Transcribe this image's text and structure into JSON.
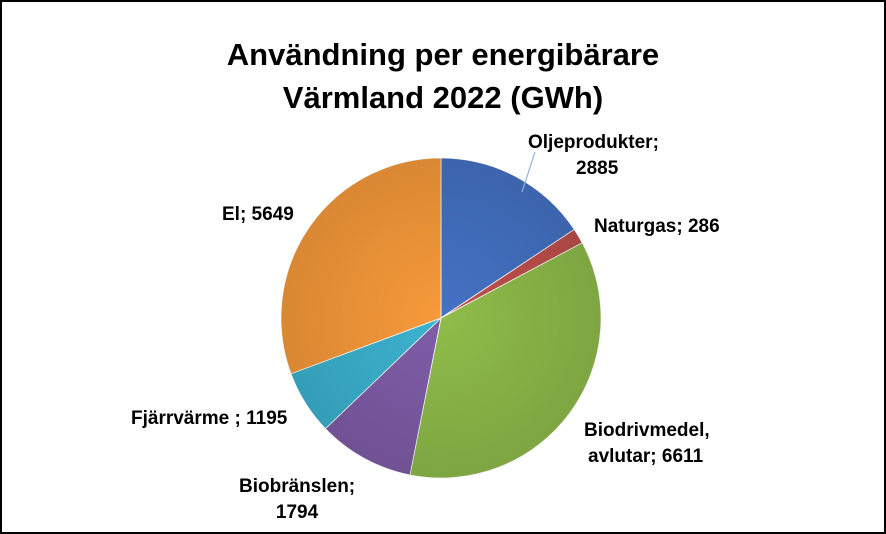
{
  "chart_data": {
    "type": "pie",
    "title_line1": "Användning per energibärare",
    "title_line2": "Värmland 2022 (GWh)",
    "slices": [
      {
        "label_line1": "Oljeprodukter;",
        "label_line2": "2885",
        "value": 2885,
        "color": "#4472C4"
      },
      {
        "label_line1": "Naturgas; 286",
        "label_line2": "",
        "value": 286,
        "color": "#C0504D"
      },
      {
        "label_line1": "Biodrivmedel,",
        "label_line2": "avlutar; 6611",
        "value": 6611,
        "color": "#8FBC4A"
      },
      {
        "label_line1": "Biobränslen;",
        "label_line2": "1794",
        "value": 1794,
        "color": "#7F5DA8"
      },
      {
        "label_line1": "Fjärrvärme ; 1195",
        "label_line2": "",
        "value": 1195,
        "color": "#3CB3D0"
      },
      {
        "label_line1": "El; 5649",
        "label_line2": "",
        "value": 5649,
        "color": "#F79A3A"
      }
    ]
  }
}
